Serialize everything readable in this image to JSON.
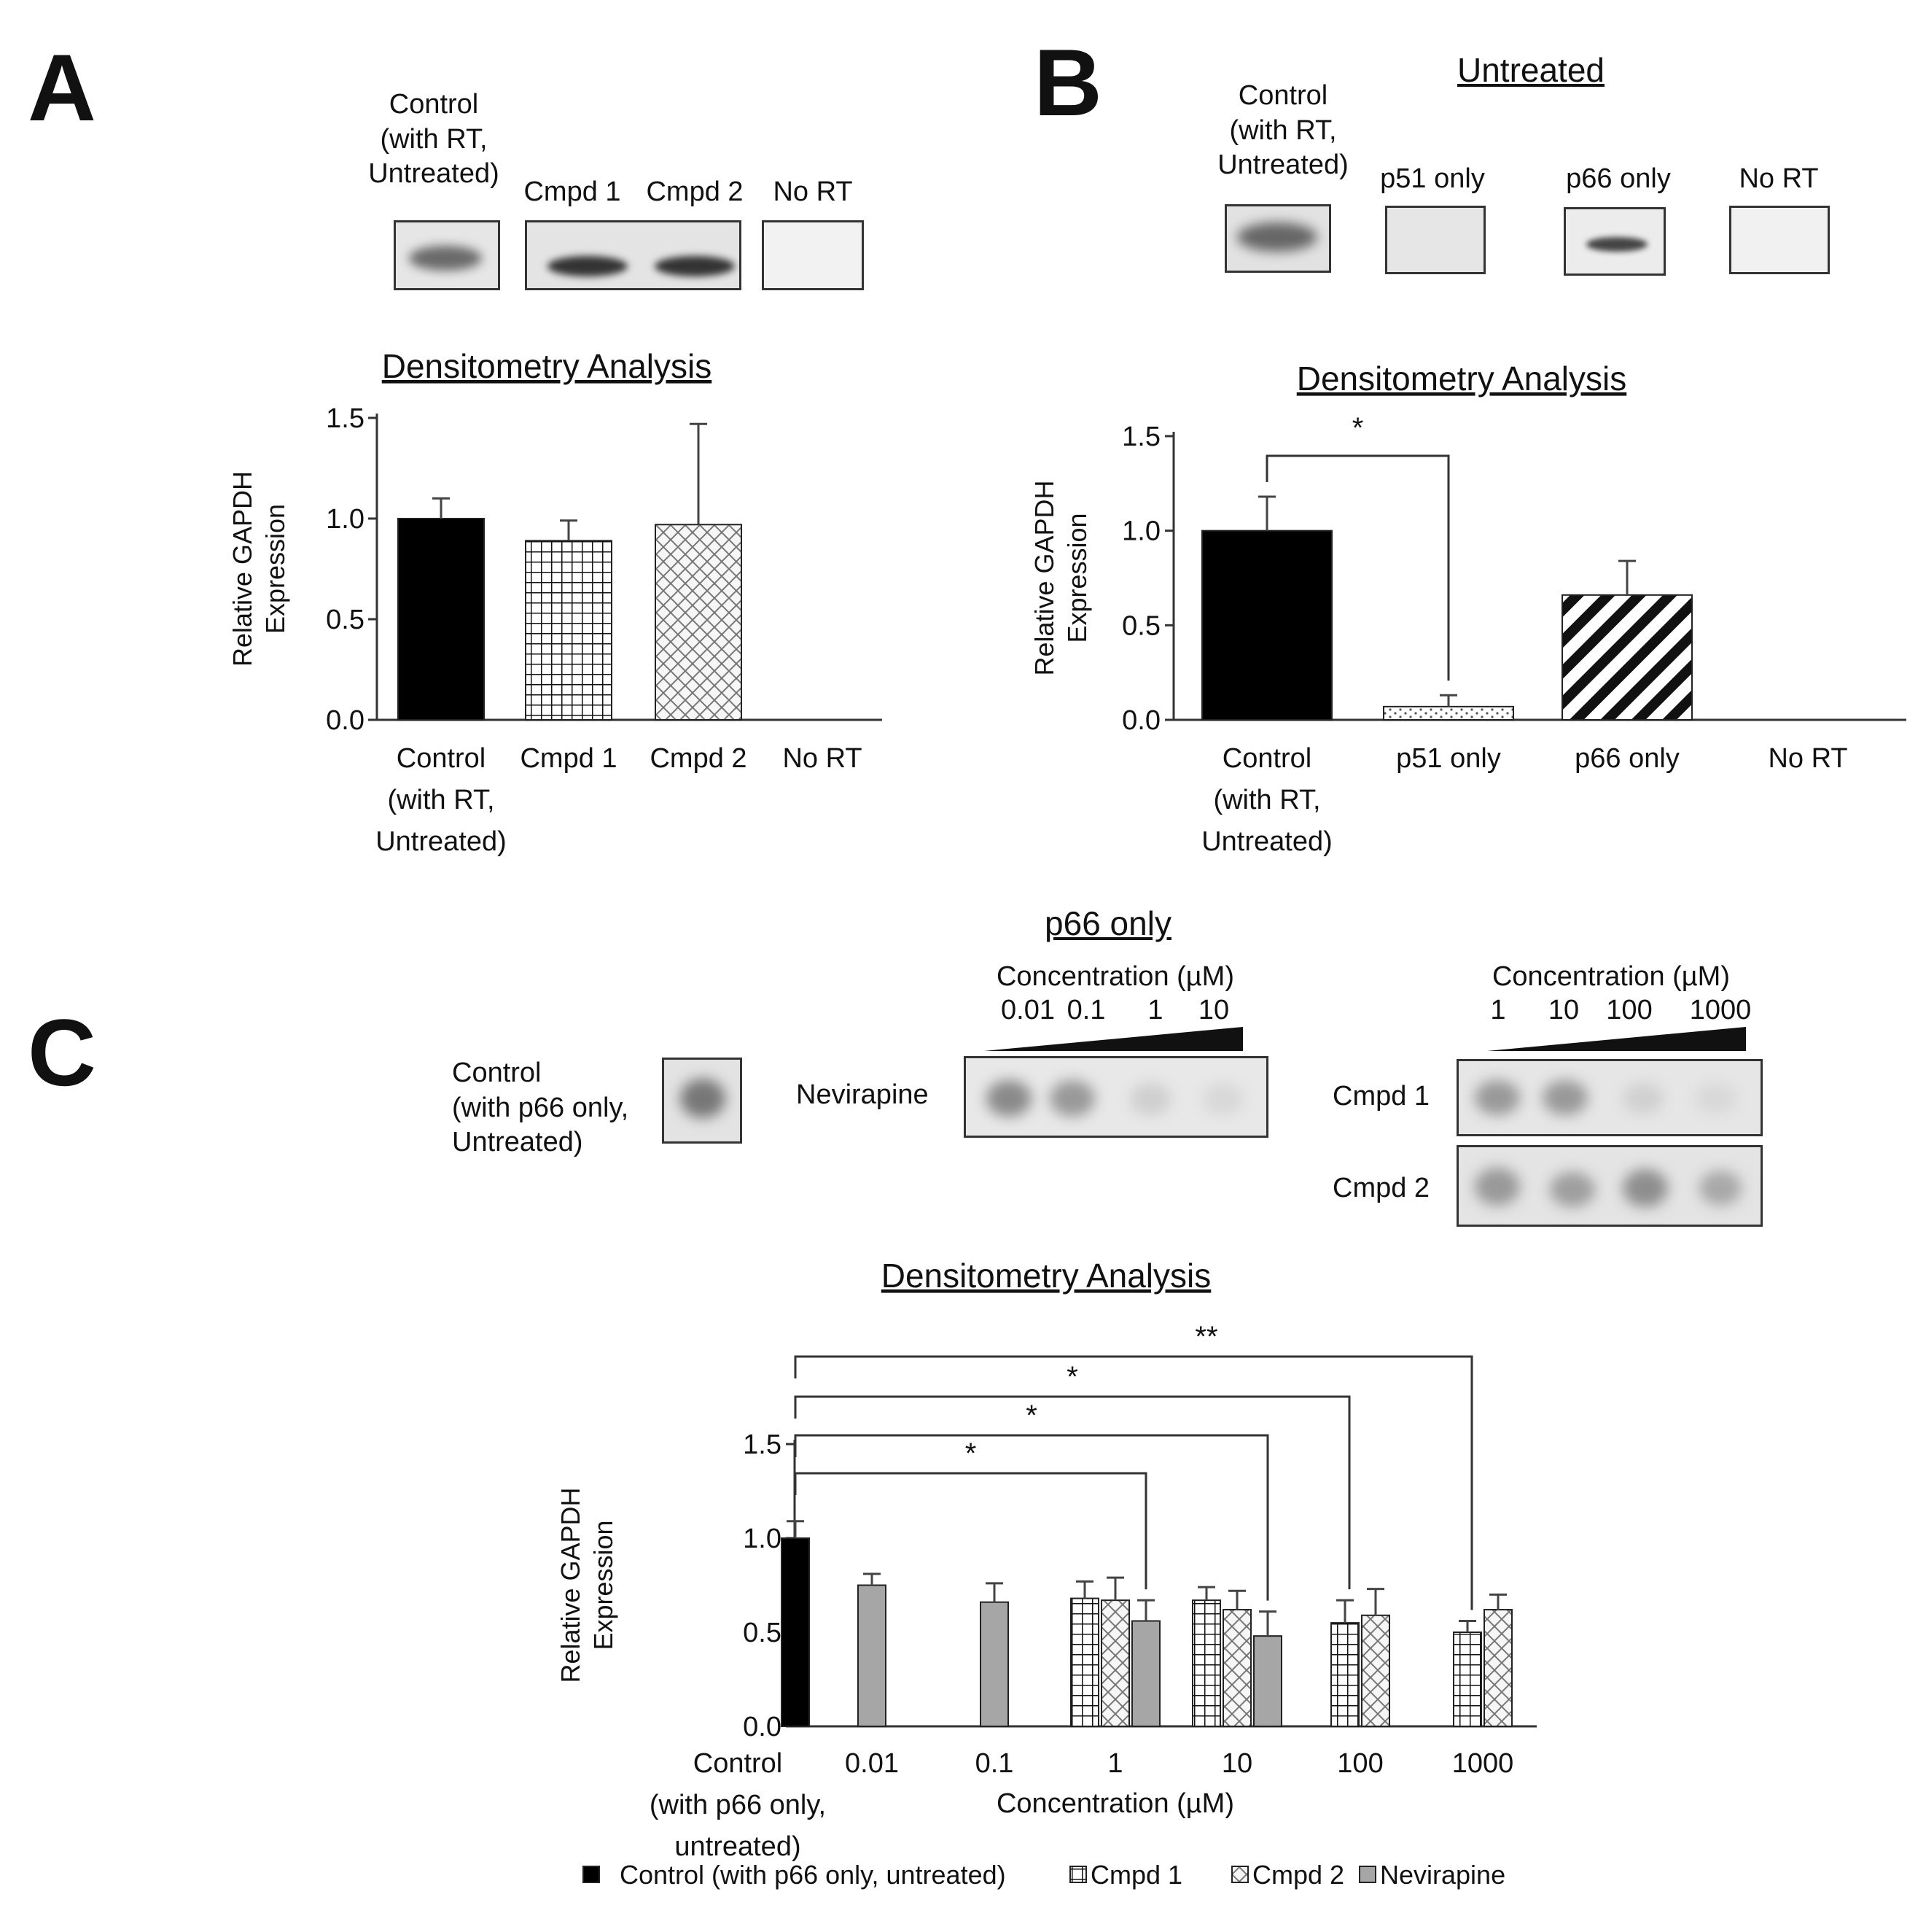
{
  "panels": {
    "a": {
      "letter": "A",
      "blot_labels": [
        {
          "l1": "Control",
          "l2": "(with RT,",
          "l3": "Untreated)"
        },
        "Cmpd 1",
        "Cmpd 2",
        "No RT"
      ]
    },
    "b": {
      "letter": "B",
      "blot_header": "Untreated",
      "blot_labels": [
        {
          "l1": "Control",
          "l2": "(with RT,",
          "l3": "Untreated)"
        },
        "p51 only",
        "p66 only",
        "No RT"
      ]
    },
    "c": {
      "letter": "C",
      "blot_header": "p66 only",
      "conc_label": "Concentration (µM)",
      "nev_concs": [
        "0.01",
        "0.1",
        "1",
        "10"
      ],
      "cmpd_concs": [
        "1",
        "10",
        "100",
        "1000"
      ],
      "control_label": {
        "l1": "Control",
        "l2": "(with p66 only,",
        "l3": "Untreated)"
      },
      "row_labels": {
        "nevirapine": "Nevirapine",
        "cmpd1": "Cmpd 1",
        "cmpd2": "Cmpd 2"
      }
    }
  },
  "colors": {
    "black": "#000000",
    "nevirapine_gray": "#a6a6a6"
  },
  "chart_data": [
    {
      "id": "A",
      "type": "bar",
      "title": "Densitometry Analysis",
      "ylabel": [
        "Relative GAPDH",
        "Expression"
      ],
      "ylim": [
        0,
        1.5
      ],
      "yticks": [
        "0.0",
        "0.5",
        "1.0",
        "1.5"
      ],
      "categories": [
        [
          "Control",
          "(with RT,",
          "Untreated)"
        ],
        [
          "Cmpd 1"
        ],
        [
          "Cmpd 2"
        ],
        [
          "No RT"
        ]
      ],
      "values": [
        1.0,
        0.89,
        0.97,
        0.0
      ],
      "errors": [
        0.1,
        0.1,
        0.5,
        0.0
      ],
      "fills": [
        "solid-black",
        "grid",
        "crosshatch",
        "none"
      ]
    },
    {
      "id": "B",
      "type": "bar",
      "title": "Densitometry Analysis",
      "ylabel": [
        "Relative GAPDH",
        "Expression"
      ],
      "ylim": [
        0,
        1.5
      ],
      "yticks": [
        "0.0",
        "0.5",
        "1.0",
        "1.5"
      ],
      "categories": [
        [
          "Control",
          "(with RT,",
          "Untreated)"
        ],
        [
          "p51 only"
        ],
        [
          "p66 only"
        ],
        [
          "No RT"
        ]
      ],
      "values": [
        1.0,
        0.07,
        0.66,
        0.0
      ],
      "errors": [
        0.18,
        0.06,
        0.18,
        0.0
      ],
      "fills": [
        "solid-black",
        "dots",
        "diagonal",
        "none"
      ],
      "significance": [
        {
          "from": 0,
          "to": 1,
          "label": "*"
        }
      ]
    },
    {
      "id": "C",
      "type": "bar",
      "title": "Densitometry Analysis",
      "ylabel": [
        "Relative GAPDH",
        "Expression"
      ],
      "xlabel": "Concentration (µM)",
      "ylim": [
        0,
        1.5
      ],
      "yticks": [
        "0.0",
        "0.5",
        "1.0",
        "1.5"
      ],
      "categories": [
        [
          "Control",
          "(with p66 only,",
          "untreated)"
        ],
        [
          "0.01"
        ],
        [
          "0.1"
        ],
        [
          "1"
        ],
        [
          "10"
        ],
        [
          "100"
        ],
        [
          "1000"
        ]
      ],
      "series": [
        {
          "name": "Control (with p66 only, untreated)",
          "fill": "solid-black",
          "values": [
            1.0,
            null,
            null,
            null,
            null,
            null,
            null
          ],
          "errors": [
            0.09,
            null,
            null,
            null,
            null,
            null,
            null
          ]
        },
        {
          "name": "Cmpd 1",
          "fill": "grid",
          "values": [
            null,
            null,
            null,
            0.68,
            0.67,
            0.55,
            0.5
          ],
          "errors": [
            null,
            null,
            null,
            0.09,
            0.07,
            0.12,
            0.06
          ]
        },
        {
          "name": "Cmpd 2",
          "fill": "crosshatch",
          "values": [
            null,
            null,
            null,
            0.67,
            0.62,
            0.59,
            0.62
          ],
          "errors": [
            null,
            null,
            null,
            0.12,
            0.1,
            0.14,
            0.08
          ]
        },
        {
          "name": "Nevirapine",
          "fill": "gray",
          "values": [
            null,
            0.75,
            0.66,
            0.56,
            0.48,
            null,
            null
          ],
          "errors": [
            null,
            0.06,
            0.1,
            0.11,
            0.13,
            null,
            null
          ]
        }
      ],
      "significance": [
        {
          "label": "*"
        },
        {
          "label": "*"
        },
        {
          "label": "*"
        },
        {
          "label": "**"
        }
      ]
    }
  ]
}
